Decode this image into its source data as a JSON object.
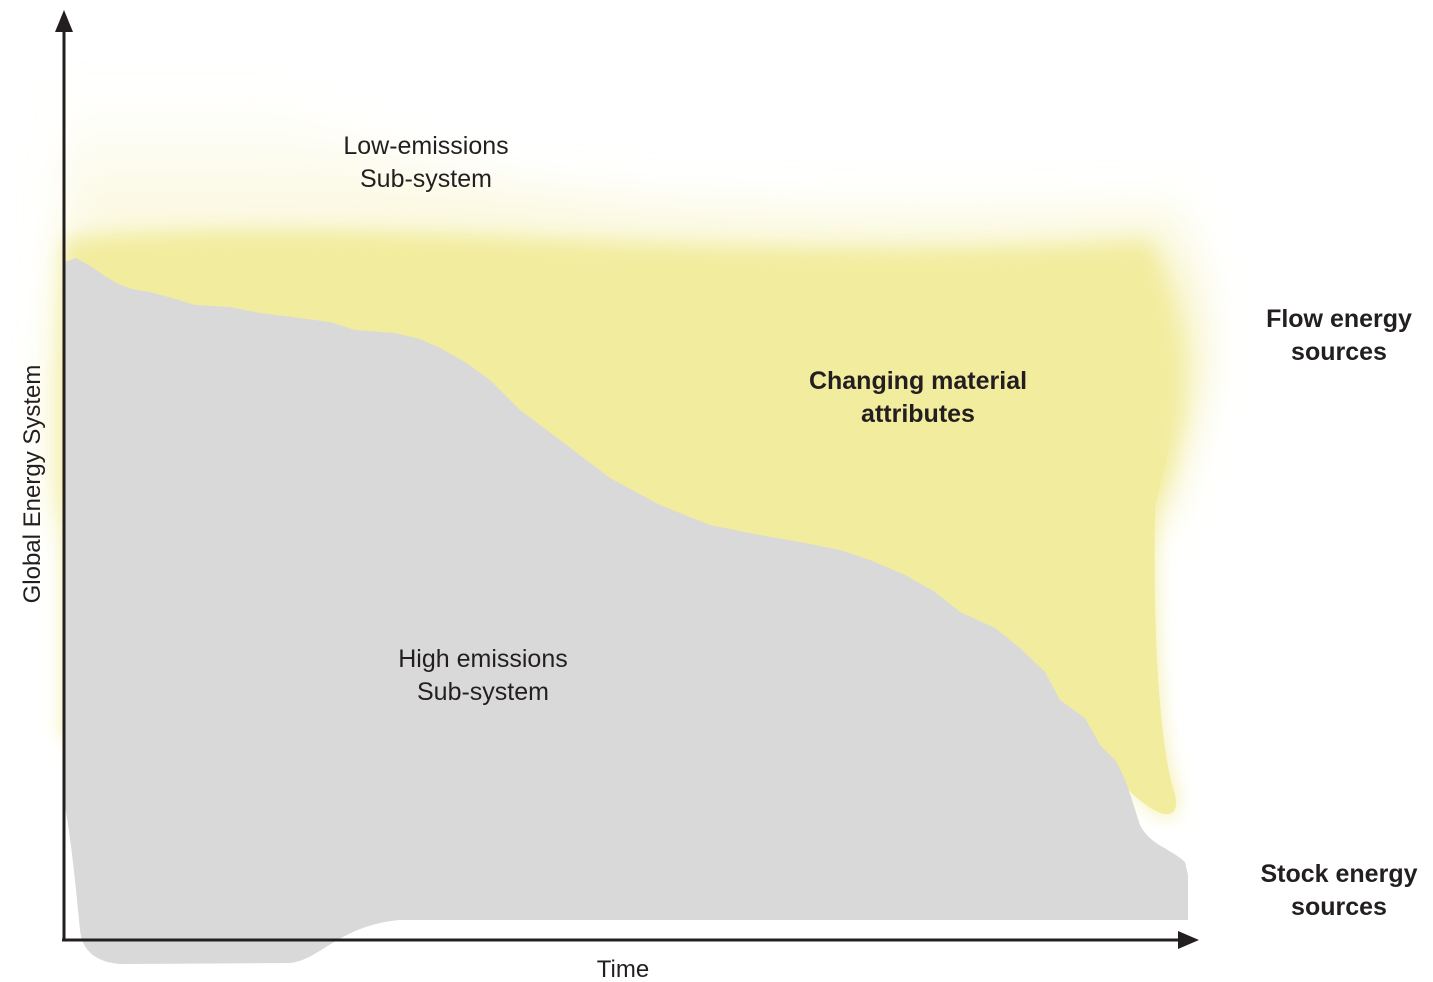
{
  "axes": {
    "y_label": "Global Energy System",
    "x_label": "Time"
  },
  "regions": {
    "low_emissions": {
      "line1": "Low-emissions",
      "line2": "Sub-system"
    },
    "high_emissions": {
      "line1": "High emissions",
      "line2": "Sub-system"
    },
    "changing": {
      "line1": "Changing material",
      "line2": "attributes"
    }
  },
  "side_labels": {
    "flow": {
      "line1": "Flow energy",
      "line2": "sources"
    },
    "stock": {
      "line1": "Stock energy",
      "line2": "sources"
    }
  },
  "colors": {
    "high_emissions_fill": "#d9d9d9",
    "low_emissions_fill": "#f2ec9e",
    "axis": "#231f20",
    "text": "#231f20"
  }
}
